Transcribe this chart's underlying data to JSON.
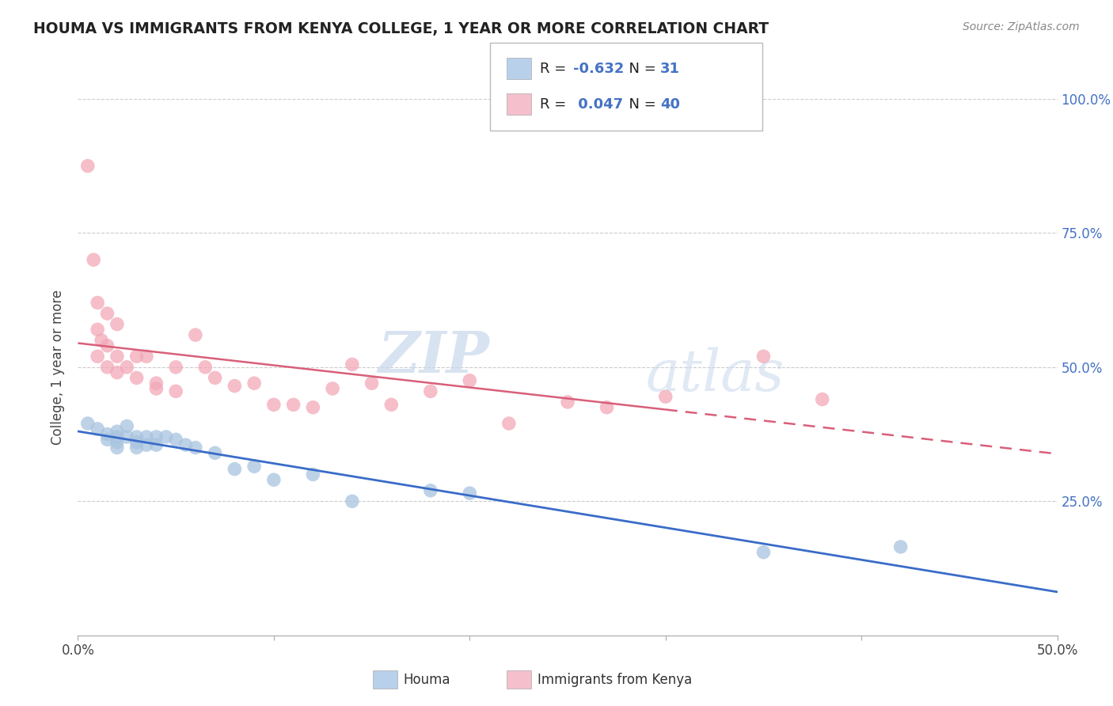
{
  "title": "HOUMA VS IMMIGRANTS FROM KENYA COLLEGE, 1 YEAR OR MORE CORRELATION CHART",
  "source_text": "Source: ZipAtlas.com",
  "ylabel": "College, 1 year or more",
  "xlabel_houma": "Houma",
  "xlabel_kenya": "Immigrants from Kenya",
  "xlim": [
    0.0,
    0.5
  ],
  "ylim": [
    0.0,
    1.0
  ],
  "houma_R": -0.632,
  "houma_N": 31,
  "kenya_R": 0.047,
  "kenya_N": 40,
  "houma_color": "#a8c4e0",
  "kenya_color": "#f2a8b8",
  "houma_line_color": "#3a6cc8",
  "kenya_line_color": "#d95f7a",
  "legend_houma_box": "#b8d0ea",
  "legend_kenya_box": "#f5bfcc",
  "houma_scatter_x": [
    0.005,
    0.01,
    0.015,
    0.015,
    0.02,
    0.02,
    0.02,
    0.02,
    0.025,
    0.025,
    0.03,
    0.03,
    0.03,
    0.035,
    0.035,
    0.04,
    0.04,
    0.045,
    0.05,
    0.055,
    0.06,
    0.07,
    0.08,
    0.09,
    0.1,
    0.12,
    0.14,
    0.18,
    0.2,
    0.35,
    0.42
  ],
  "houma_scatter_y": [
    0.395,
    0.385,
    0.375,
    0.365,
    0.38,
    0.37,
    0.36,
    0.35,
    0.39,
    0.37,
    0.37,
    0.36,
    0.35,
    0.37,
    0.355,
    0.37,
    0.355,
    0.37,
    0.365,
    0.355,
    0.35,
    0.34,
    0.31,
    0.315,
    0.29,
    0.3,
    0.25,
    0.27,
    0.265,
    0.155,
    0.165
  ],
  "kenya_scatter_x": [
    0.005,
    0.008,
    0.01,
    0.01,
    0.01,
    0.012,
    0.015,
    0.015,
    0.015,
    0.02,
    0.02,
    0.02,
    0.025,
    0.03,
    0.03,
    0.035,
    0.04,
    0.04,
    0.05,
    0.05,
    0.06,
    0.065,
    0.07,
    0.08,
    0.09,
    0.1,
    0.11,
    0.12,
    0.13,
    0.14,
    0.15,
    0.16,
    0.18,
    0.2,
    0.22,
    0.25,
    0.27,
    0.3,
    0.35,
    0.38
  ],
  "kenya_scatter_y": [
    0.875,
    0.7,
    0.62,
    0.57,
    0.52,
    0.55,
    0.6,
    0.54,
    0.5,
    0.58,
    0.52,
    0.49,
    0.5,
    0.52,
    0.48,
    0.52,
    0.47,
    0.46,
    0.5,
    0.455,
    0.56,
    0.5,
    0.48,
    0.465,
    0.47,
    0.43,
    0.43,
    0.425,
    0.46,
    0.505,
    0.47,
    0.43,
    0.455,
    0.475,
    0.395,
    0.435,
    0.425,
    0.445,
    0.52,
    0.44
  ],
  "watermark_zip": "ZIP",
  "watermark_atlas": "atlas",
  "background_color": "#ffffff",
  "grid_color": "#cccccc"
}
